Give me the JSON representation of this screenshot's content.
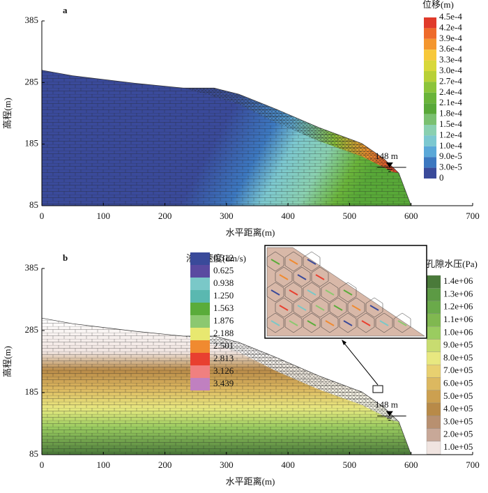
{
  "chart_data": [
    {
      "type": "contour",
      "panel_label": "a",
      "xlabel": "水平距离(m)",
      "ylabel": "高程(m)",
      "xlim": [
        0,
        700
      ],
      "xticks": [
        0,
        100,
        200,
        300,
        400,
        500,
        600,
        700
      ],
      "ylim": [
        85,
        385
      ],
      "yticks": [
        85,
        185,
        285,
        385
      ],
      "annotation": "148 m",
      "legends": [
        {
          "title": "位移(m)",
          "labels": [
            "4.5e-4",
            "4.2e-4",
            "3.9e-4",
            "3.6e-4",
            "3.3e-4",
            "3.0e-4",
            "2.7e-4",
            "2.4e-4",
            "2.1e-4",
            "1.8e-4",
            "1.5e-4",
            "1.2e-4",
            "1.0e-4",
            "9.0e-5",
            "3.0e-5",
            "0"
          ],
          "colors": [
            "#e03a2a",
            "#ee6a2a",
            "#f4962e",
            "#f7c83a",
            "#d8d83a",
            "#b8d036",
            "#8cc43a",
            "#6ab43a",
            "#58a838",
            "#7ac070",
            "#8ad0b0",
            "#7cc8d0",
            "#5aa8d8",
            "#3c78c0",
            "#3a4a9a"
          ]
        }
      ]
    },
    {
      "type": "contour",
      "panel_label": "b",
      "xlabel": "水平距离(m)",
      "ylabel": "高程(m)",
      "xlim": [
        0,
        700
      ],
      "xticks": [
        0,
        100,
        200,
        300,
        400,
        500,
        600,
        700
      ],
      "ylim": [
        85,
        385
      ],
      "yticks": [
        85,
        185,
        285,
        385
      ],
      "annotation": "148 m",
      "legends": [
        {
          "title": "渗流速度(dm/s)",
          "labels": [
            "0.312",
            "0.625",
            "0.938",
            "1.250",
            "1.563",
            "1.876",
            "2.188",
            "2.501",
            "2.813",
            "3.126",
            "3.439"
          ],
          "colors": [
            "#3a4a9a",
            "#5a4aa0",
            "#7ac8c8",
            "#5ab8b0",
            "#5aac3a",
            "#8cc870",
            "#e8e870",
            "#f08a30",
            "#e84030",
            "#f08080",
            "#c080c0"
          ]
        },
        {
          "title": "孔隙水压(Pa)",
          "labels": [
            "1.4e+06",
            "1.3e+06",
            "1.2e+06",
            "1.1e+06",
            "1.0e+06",
            "9.0e+05",
            "8.0e+05",
            "7.0e+05",
            "6.0e+05",
            "5.0e+05",
            "4.0e+05",
            "3.0e+05",
            "2.0e+05",
            "1.0e+05"
          ],
          "colors": [
            "#4a7a3a",
            "#5c9a44",
            "#6aaa4a",
            "#80b850",
            "#9acc60",
            "#c8dc70",
            "#e8e880",
            "#e8d070",
            "#dcb860",
            "#cca050",
            "#b88a48",
            "#b89070",
            "#c8a898",
            "#f0e4e0"
          ]
        }
      ]
    }
  ]
}
